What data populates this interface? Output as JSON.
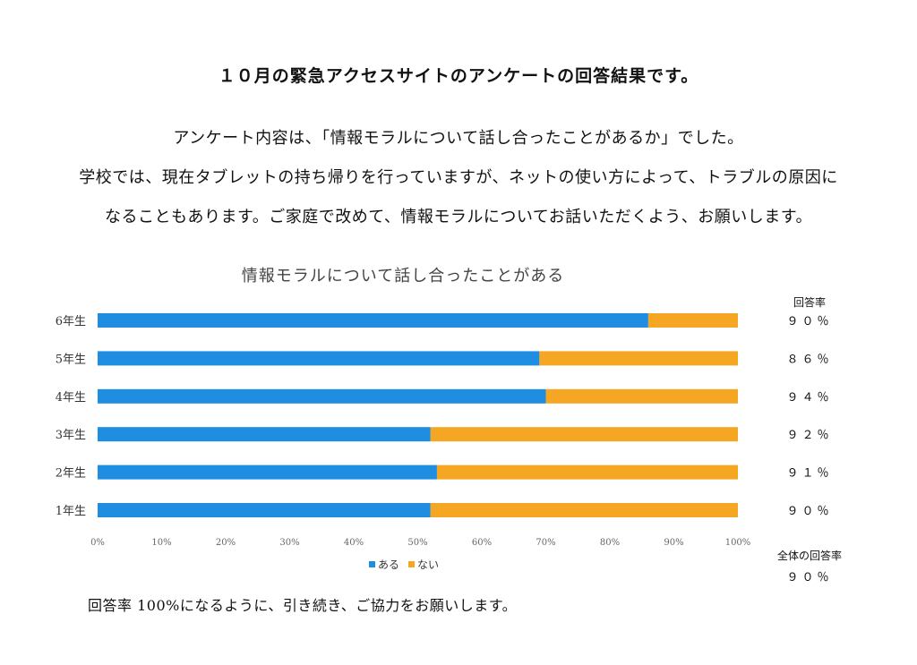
{
  "title": "１０月の緊急アクセスサイトのアンケートの回答結果です。",
  "paragraph_lines": [
    "アンケート内容は、「情報モラルについて話し合ったことがあるか」でした。",
    "学校では、現在タブレットの持ち帰りを行っていますが、ネットの使い方によって、トラブルの原因に",
    "なることもあります。ご家庭で改めて、情報モラルについてお話いただくよう、お願いします。"
  ],
  "rate_header": "回答率",
  "total_rate_label": "全体の回答率",
  "total_rate_value": "９０％",
  "footer": "回答率 100%になるように、引き続き、ご協力をお願いします。",
  "chart_data": {
    "type": "bar",
    "orientation": "horizontal",
    "stacked": true,
    "percent": true,
    "title": "情報モラルについて話し合ったことがある",
    "categories": [
      "6年生",
      "5年生",
      "4年生",
      "3年生",
      "2年生",
      "1年生"
    ],
    "series": [
      {
        "name": "ある",
        "color": "#1f8ee0",
        "values": [
          86,
          69,
          70,
          52,
          53,
          52
        ]
      },
      {
        "name": "ない",
        "color": "#f5a623",
        "values": [
          14,
          31,
          30,
          48,
          47,
          48
        ]
      }
    ],
    "xlim": [
      0,
      100
    ],
    "xticks": [
      "0%",
      "10%",
      "20%",
      "30%",
      "40%",
      "50%",
      "60%",
      "70%",
      "80%",
      "90%",
      "100%"
    ],
    "response_rates": [
      "９０％",
      "８６％",
      "９４％",
      "９２％",
      "９１％",
      "９０％"
    ],
    "legend_position": "bottom",
    "grid": false
  }
}
